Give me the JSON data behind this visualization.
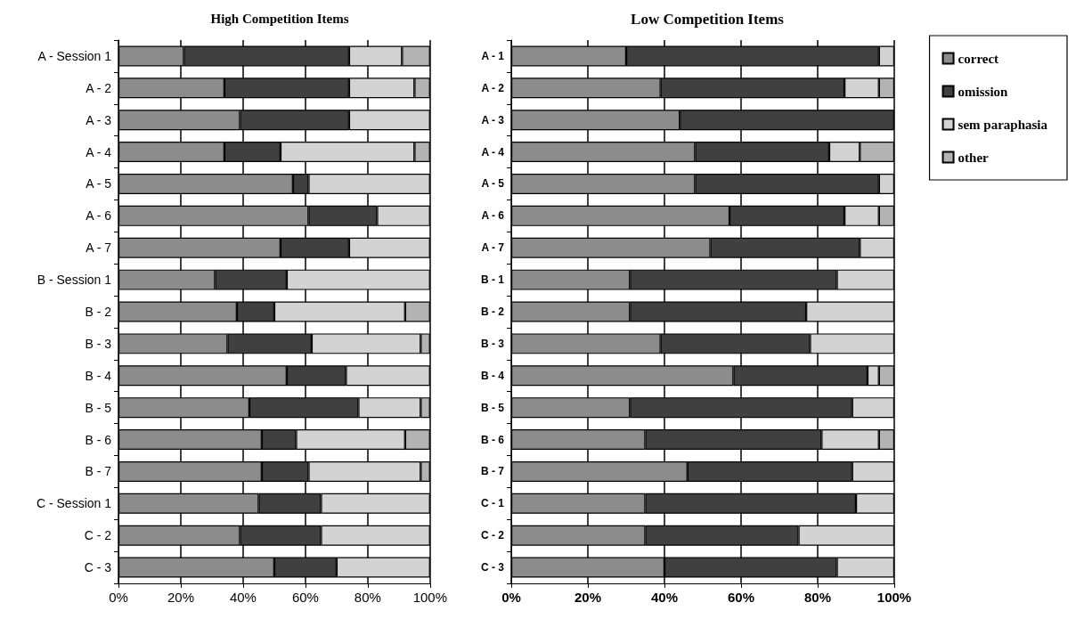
{
  "chart_data": [
    {
      "type": "bar",
      "title": "High Competition Items",
      "orientation": "horizontal",
      "stacked": true,
      "grid": "x",
      "legend": false,
      "categories": [
        "A - Session 1",
        "A - 2",
        "A - 3",
        "A - 4",
        "A - 5",
        "A - 6",
        "A - 7",
        "B - Session 1",
        "B - 2",
        "B - 3",
        "B - 4",
        "B - 5",
        "B - 6",
        "B - 7",
        "C - Session 1",
        "C - 2",
        "C - 3"
      ],
      "xlim": [
        0,
        100
      ],
      "xticks": [
        {
          "value": 0,
          "label": "0%"
        },
        {
          "value": 20,
          "label": "20%"
        },
        {
          "value": 40,
          "label": "40%"
        },
        {
          "value": 60,
          "label": "60%"
        },
        {
          "value": 80,
          "label": "80%"
        },
        {
          "value": 100,
          "label": "100%"
        }
      ],
      "series": [
        {
          "color": "#8c8c8c",
          "values": [
            21,
            34,
            39,
            34,
            56,
            61,
            52,
            31,
            38,
            35,
            54,
            42,
            46,
            46,
            45,
            39,
            50
          ]
        },
        {
          "color": "#404040",
          "values": [
            53,
            40,
            35,
            18,
            5,
            22,
            22,
            23,
            12,
            27,
            19,
            35,
            11,
            15,
            20,
            26,
            20
          ]
        },
        {
          "color": "#d3d3d3",
          "values": [
            17,
            21,
            26,
            43,
            39,
            17,
            26,
            46,
            42,
            35,
            27,
            20,
            35,
            36,
            35,
            35,
            30
          ]
        },
        {
          "color": "#b3b3b3",
          "values": [
            9,
            5,
            0,
            5,
            0,
            0,
            0,
            0,
            8,
            3,
            0,
            3,
            8,
            3,
            0,
            0,
            0
          ]
        }
      ]
    },
    {
      "type": "bar",
      "title": "Low Competition Items",
      "orientation": "horizontal",
      "stacked": true,
      "grid": "x",
      "legend": "right",
      "categories": [
        "A - 1",
        "A - 2",
        "A - 3",
        "A - 4",
        "A - 5",
        "A - 6",
        "A - 7",
        "B - 1",
        "B - 2",
        "B - 3",
        "B - 4",
        "B - 5",
        "B - 6",
        "B - 7",
        "C - 1",
        "C - 2",
        "C - 3"
      ],
      "xlim": [
        0,
        100
      ],
      "xticks": [
        {
          "value": 0,
          "label": "0%"
        },
        {
          "value": 20,
          "label": "20%"
        },
        {
          "value": 40,
          "label": "40%"
        },
        {
          "value": 60,
          "label": "60%"
        },
        {
          "value": 80,
          "label": "80%"
        },
        {
          "value": 100,
          "label": "100%"
        }
      ],
      "series": [
        {
          "name": "correct",
          "color": "#8c8c8c",
          "values": [
            30,
            39,
            44,
            48,
            48,
            57,
            52,
            31,
            31,
            39,
            58,
            31,
            35,
            46,
            35,
            35,
            40
          ]
        },
        {
          "name": "omission",
          "color": "#404040",
          "values": [
            66,
            48,
            56,
            35,
            48,
            30,
            39,
            54,
            46,
            39,
            35,
            58,
            46,
            43,
            55,
            40,
            45
          ]
        },
        {
          "name": "sem paraphasia",
          "color": "#d3d3d3",
          "values": [
            4,
            9,
            0,
            8,
            4,
            9,
            9,
            15,
            23,
            22,
            3,
            11,
            15,
            11,
            10,
            25,
            15
          ]
        },
        {
          "name": "other",
          "color": "#b3b3b3",
          "values": [
            0,
            4,
            0,
            9,
            0,
            4,
            0,
            0,
            0,
            0,
            4,
            0,
            4,
            0,
            0,
            0,
            0
          ]
        }
      ]
    }
  ]
}
